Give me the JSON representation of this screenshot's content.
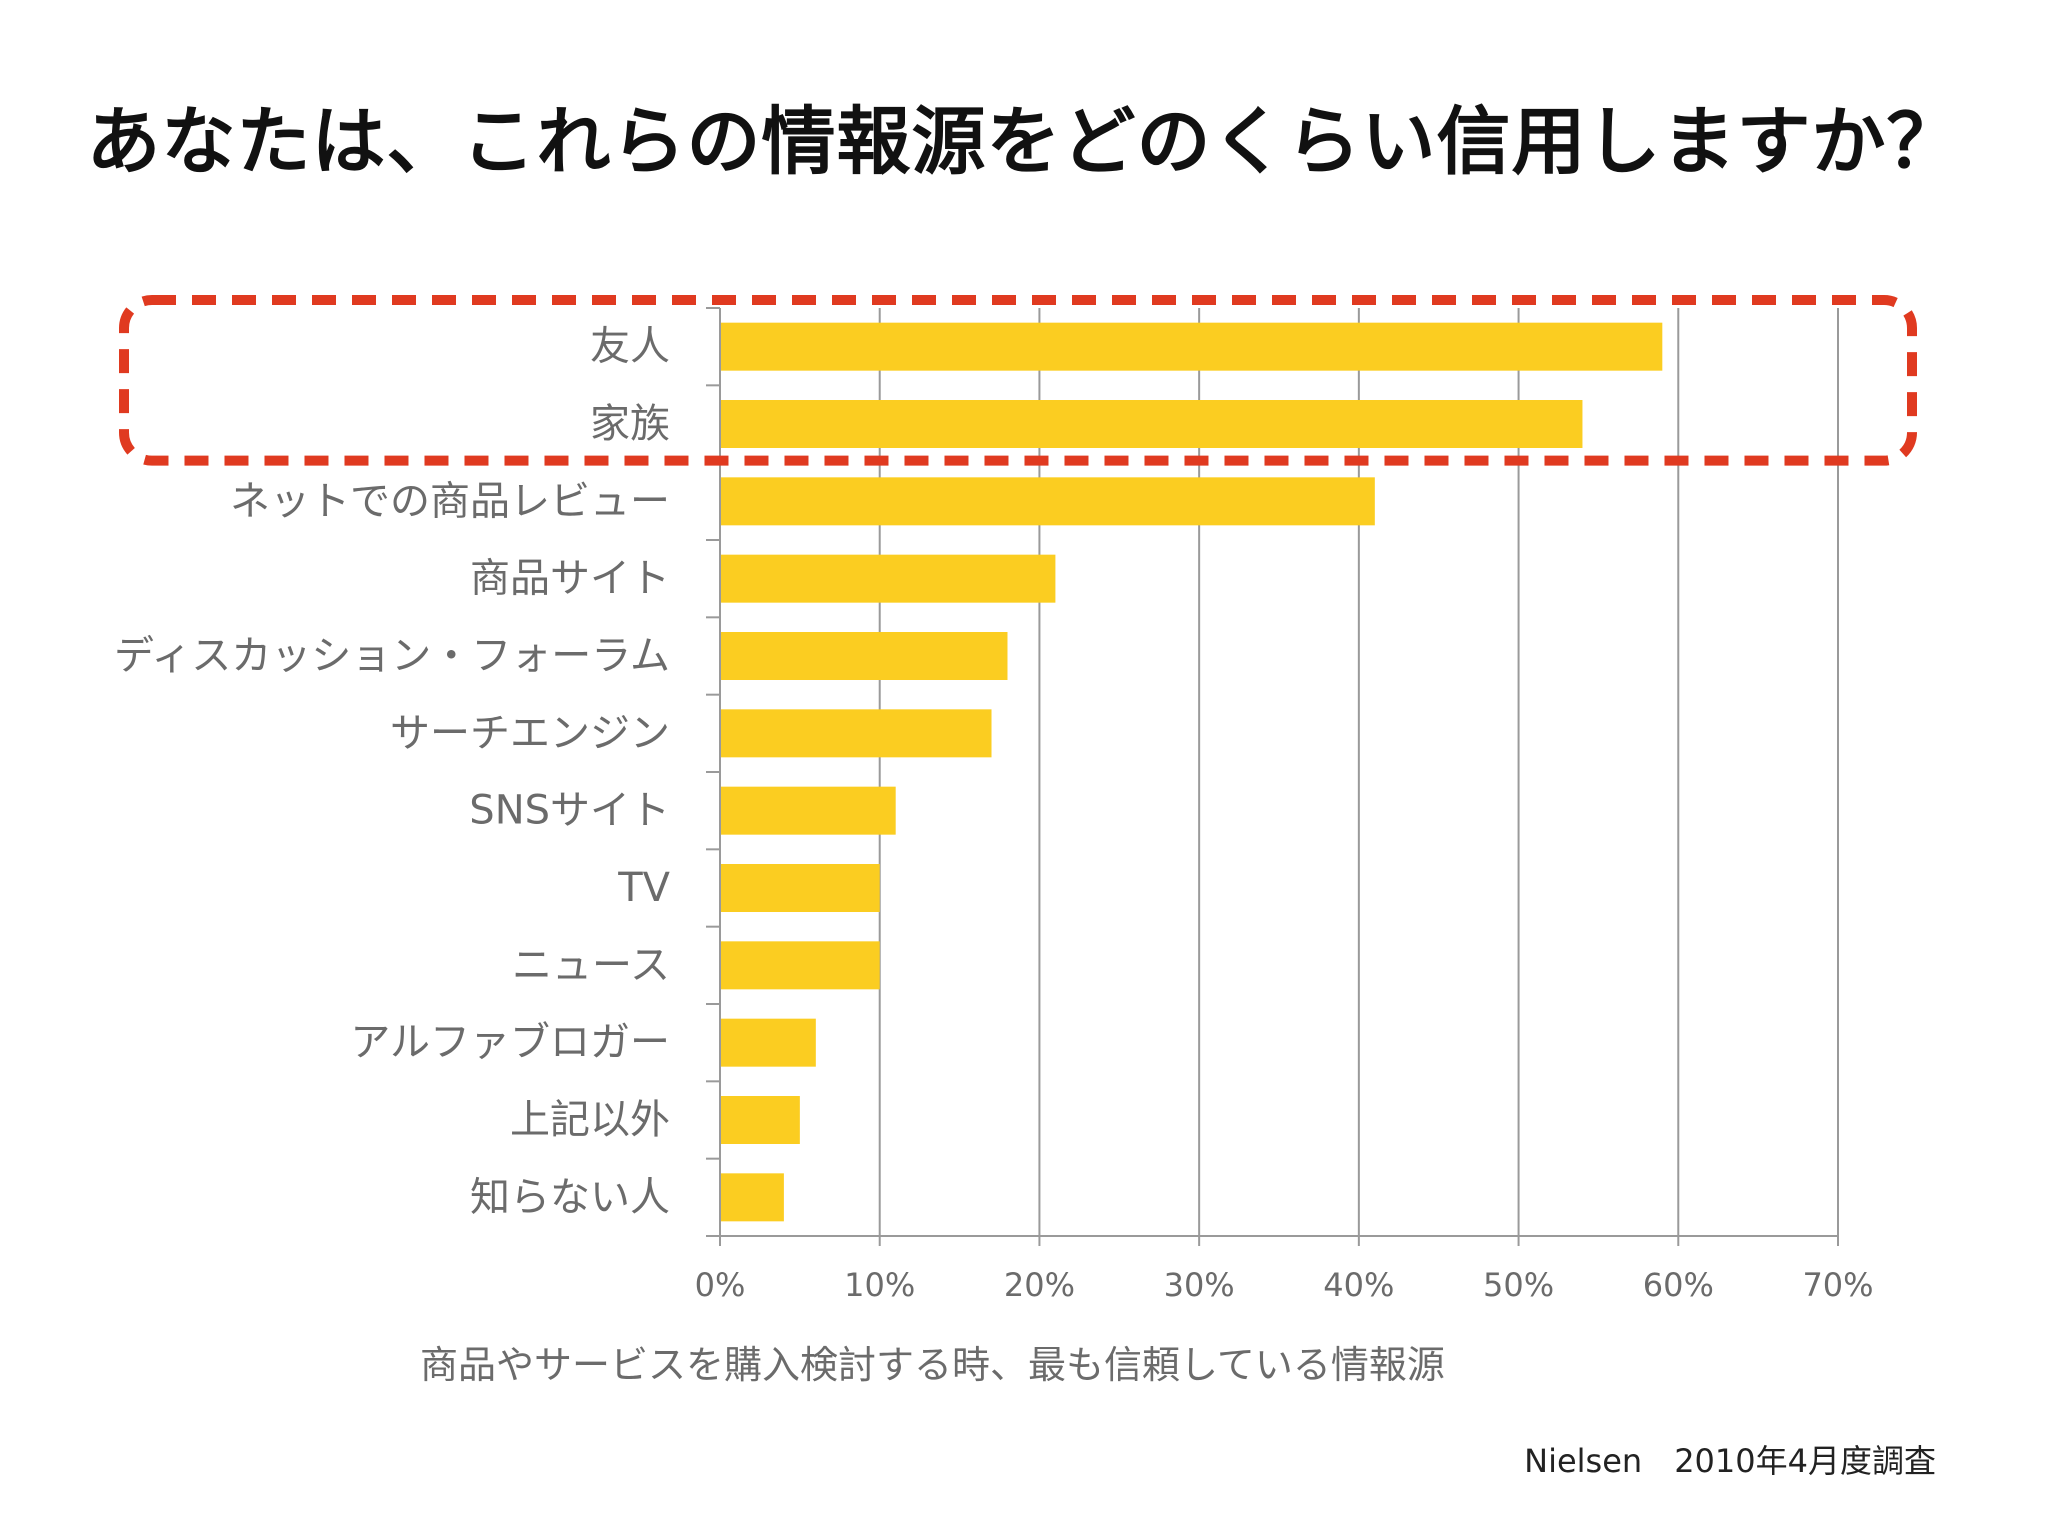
{
  "title": "あなたは、これらの情報源をどのくらい信用しますか？",
  "source": "Nielsen　2010年4月度調査",
  "colors": {
    "bar": "#FBCD21",
    "grid": "#9a9a9a",
    "highlight": "#E03A20",
    "label": "#6b6b6b"
  },
  "chart_data": {
    "type": "bar",
    "orientation": "horizontal",
    "categories": [
      "友人",
      "家族",
      "ネットでの商品レビュー",
      "商品サイト",
      "ディスカッション・フォーラム",
      "サーチエンジン",
      "SNSサイト",
      "TV",
      "ニュース",
      "アルファブロガー",
      "上記以外",
      "知らない人"
    ],
    "values": [
      59,
      54,
      41,
      21,
      18,
      17,
      11,
      10,
      10,
      6,
      5,
      4
    ],
    "xlabel": "商品やサービスを購入検討する時、最も信頼している情報源",
    "xlim": [
      0,
      70
    ],
    "ticks": [
      0,
      10,
      20,
      30,
      40,
      50,
      60,
      70
    ],
    "tick_labels": [
      "0%",
      "10%",
      "20%",
      "30%",
      "40%",
      "50%",
      "60%",
      "70%"
    ],
    "grid": true,
    "highlight": {
      "style": "dashed-rounded-box",
      "categories": [
        "友人",
        "家族"
      ]
    }
  }
}
